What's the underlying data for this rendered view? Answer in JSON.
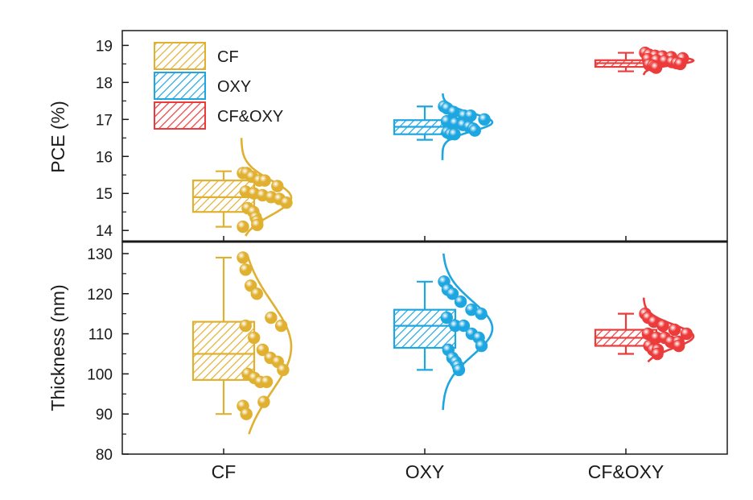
{
  "chart_data": {
    "type": "box",
    "categories": [
      "CF",
      "OXY",
      "CF&OXY"
    ],
    "colors": {
      "CF": "#e0b030",
      "OXY": "#1ea6e0",
      "CF&OXY": "#ec3b3b"
    },
    "legend": {
      "placement": "top-left",
      "entries": [
        "CF",
        "OXY",
        "CF&OXY"
      ]
    },
    "panels": [
      {
        "id": "pce",
        "ylabel": "PCE (%)",
        "ylim": [
          13.7,
          19.4
        ],
        "yticks": [
          14,
          15,
          16,
          17,
          18,
          19
        ],
        "series": [
          {
            "name": "CF",
            "box": {
              "whisker_low": 14.1,
              "q1": 14.5,
              "median": 14.9,
              "q3": 15.35,
              "whisker_high": 15.6
            },
            "points": [
              15.55,
              15.55,
              15.45,
              15.35,
              15.35,
              15.2,
              15.05,
              15.0,
              14.95,
              14.9,
              14.85,
              14.75,
              14.6,
              14.5,
              14.35,
              14.25,
              14.15,
              14.1
            ],
            "density_range": [
              13.85,
              16.5
            ]
          },
          {
            "name": "OXY",
            "box": {
              "whisker_low": 16.45,
              "q1": 16.6,
              "median": 16.8,
              "q3": 16.98,
              "whisker_high": 17.35
            },
            "points": [
              17.35,
              17.3,
              17.2,
              17.1,
              17.1,
              17.0,
              16.95,
              16.9,
              16.85,
              16.8,
              16.75,
              16.7,
              16.65,
              16.6,
              16.6
            ],
            "density_range": [
              15.9,
              17.7
            ]
          },
          {
            "name": "CF&OXY",
            "box": {
              "whisker_low": 18.3,
              "q1": 18.42,
              "median": 18.52,
              "q3": 18.6,
              "whisker_high": 18.8
            },
            "points": [
              18.8,
              18.75,
              18.72,
              18.7,
              18.68,
              18.65,
              18.63,
              18.6,
              18.58,
              18.55,
              18.52,
              18.5,
              18.48,
              18.45,
              18.42,
              18.4
            ],
            "density_range": [
              18.2,
              18.95
            ]
          }
        ]
      },
      {
        "id": "thickness",
        "ylabel": "Thickness (nm)",
        "ylim": [
          80,
          133
        ],
        "yticks": [
          80,
          90,
          100,
          110,
          120,
          130
        ],
        "series": [
          {
            "name": "CF",
            "box": {
              "whisker_low": 90,
              "q1": 98.5,
              "median": 105,
              "q3": 113,
              "whisker_high": 129
            },
            "points": [
              129,
              126,
              122,
              120,
              114,
              112,
              112,
              109,
              106,
              104,
              103,
              101,
              100,
              99,
              98,
              98,
              93,
              92,
              90
            ],
            "density_range": [
              85,
              129
            ]
          },
          {
            "name": "OXY",
            "box": {
              "whisker_low": 101,
              "q1": 106.5,
              "median": 112,
              "q3": 116,
              "whisker_high": 123
            },
            "points": [
              123,
              121,
              120,
              118,
              116,
              115,
              114,
              112,
              112,
              110,
              109,
              107,
              106,
              104,
              103,
              102,
              101
            ],
            "density_range": [
              91,
              130
            ]
          },
          {
            "name": "CF&OXY",
            "box": {
              "whisker_low": 105,
              "q1": 107,
              "median": 109,
              "q3": 111,
              "whisker_high": 115
            },
            "points": [
              115,
              114,
              113,
              112,
              111,
              110,
              110,
              109,
              109,
              108,
              108,
              107,
              107,
              106,
              106,
              105
            ],
            "density_range": [
              103,
              119
            ]
          }
        ]
      }
    ]
  }
}
